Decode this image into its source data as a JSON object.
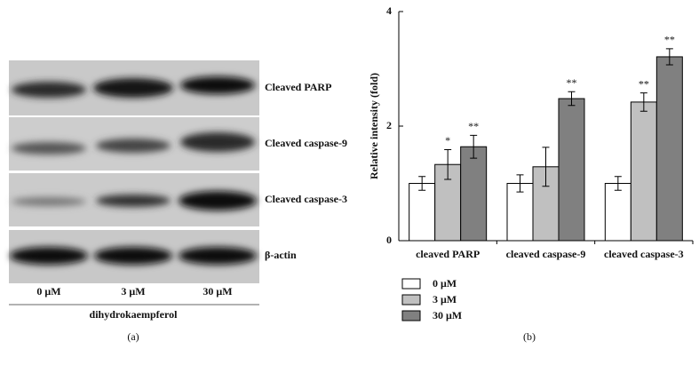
{
  "blot": {
    "rows": [
      "Cleaved PARP",
      "Cleaved caspase-9",
      "Cleaved caspase-3",
      "β-actin"
    ],
    "lanes": [
      "0 μM",
      "3 μM",
      "30 μM"
    ],
    "treatment": "dihydrokaempferol",
    "panel": "(a)"
  },
  "chart_data": {
    "type": "bar",
    "panel": "(b)",
    "y_label": "Relative intensity (fold)",
    "categories": [
      "cleaved PARP",
      "cleaved caspase-9",
      "cleaved caspase-3"
    ],
    "series": [
      {
        "name": "0 μM",
        "color": "#ffffff",
        "values": [
          1.0,
          1.0,
          1.0
        ],
        "errors": [
          0.12,
          0.15,
          0.12
        ],
        "significance": [
          null,
          null,
          null
        ]
      },
      {
        "name": "3 μM",
        "color": "#c0c0c0",
        "values": [
          1.33,
          1.29,
          2.42
        ],
        "errors": [
          0.26,
          0.34,
          0.16
        ],
        "significance": [
          "*",
          null,
          "**"
        ]
      },
      {
        "name": "30 μM",
        "color": "#808080",
        "values": [
          1.64,
          2.48,
          3.21
        ],
        "errors": [
          0.2,
          0.12,
          0.14
        ],
        "significance": [
          "**",
          "**",
          "**"
        ]
      }
    ],
    "ylim": [
      0,
      4
    ],
    "yticks": [
      0,
      2,
      4
    ],
    "legend": "bottom-left"
  }
}
